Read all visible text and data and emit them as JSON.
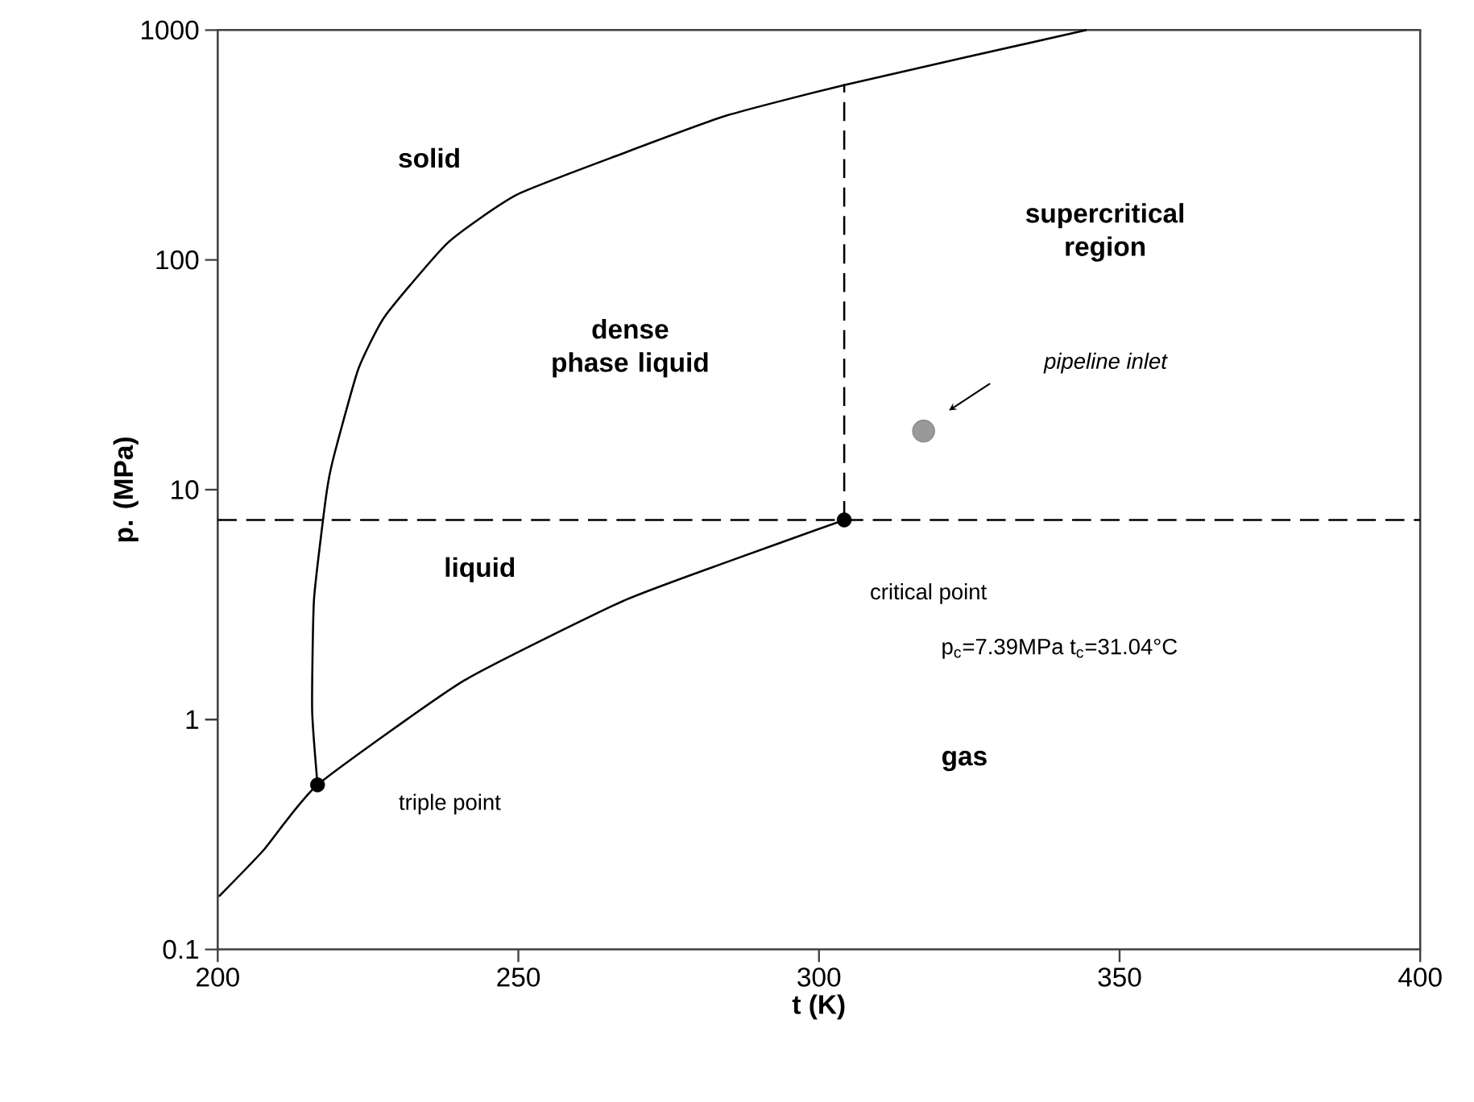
{
  "chart_data": {
    "type": "line",
    "xlabel": "t (K)",
    "ylabel": "p. (MPa)",
    "log": "y",
    "xlim": [
      200,
      400
    ],
    "xticks": [
      200,
      250,
      300,
      350,
      400
    ],
    "ylim": [
      0.1,
      1000
    ],
    "yticks": [
      0.1,
      1,
      10,
      100,
      1000
    ],
    "series": [
      {
        "color": "#000000",
        "x": [
          216.6,
          215.7,
          216.0,
          217.7,
          218.6,
          219.9,
          223.4,
          227.8,
          238.3,
          249.7,
          267.3,
          284.7,
          305.0,
          344.5
        ],
        "values": [
          0.52,
          1.1,
          3.3,
          8.1,
          11.6,
          16,
          33.6,
          56.8,
          119,
          192,
          290,
          425,
          583,
          1000
        ]
      },
      {
        "color": "#000000",
        "x": [
          200.2,
          207.6,
          216.6,
          241.0,
          267.3,
          284.8,
          304.2
        ],
        "values": [
          0.17,
          0.27,
          0.52,
          1.48,
          3.27,
          4.86,
          7.39
        ]
      },
      {
        "color": "#000000",
        "line_style": "dashed",
        "x": [
          304.2,
          304.2
        ],
        "values": [
          7.39,
          583
        ]
      },
      {
        "type": "scatter",
        "color": "#000000",
        "marker": "circle",
        "x": [
          216.6,
          304.2
        ],
        "values": [
          0.52,
          7.39
        ]
      },
      {
        "type": "scatter",
        "name": "pipeline inlet",
        "color": "#999999",
        "marker": "circle",
        "x": [
          317.4
        ],
        "values": [
          18
        ]
      }
    ],
    "ref_lines": [
      {
        "axis": "y",
        "value": 7.39,
        "color": "#000000",
        "line_style": "dashed"
      }
    ],
    "annotations": [
      "solid",
      "dense phase liquid",
      "supercritical region",
      "liquid",
      "gas",
      "triple point",
      "critical point",
      "p$_{c}$=7.39MPa   t$_{c}$=31.04°C"
    ]
  }
}
